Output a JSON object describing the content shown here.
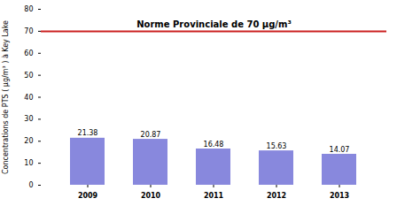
{
  "chart_data": {
    "type": "bar",
    "categories": [
      "2009",
      "2010",
      "2011",
      "2012",
      "2013"
    ],
    "values": [
      21.38,
      20.87,
      16.48,
      15.63,
      14.07
    ],
    "color": "#8888dd",
    "ylabel": "Concentrations de PTS ( μg/m³ ) à Key Lake",
    "ylim": [
      0,
      80
    ],
    "yticks": [
      0,
      10,
      20,
      30,
      40,
      50,
      60,
      70,
      80
    ],
    "grid": false,
    "data_labels": true,
    "reference_lines": [
      {
        "y": 70,
        "label": "Norme Provinciale de 70 μg/m³",
        "color": "#cc2222"
      }
    ]
  }
}
